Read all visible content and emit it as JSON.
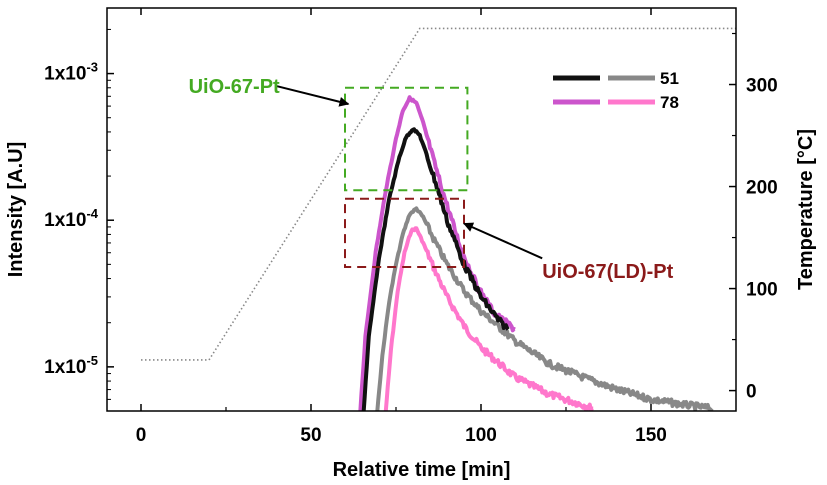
{
  "chart_data": {
    "type": "line",
    "title": "",
    "xlabel": "Relative time [min]",
    "ylabel": "Intensity [A.U]",
    "y2label": "Temperature [°C]",
    "xlim": [
      -10,
      175
    ],
    "ylim": [
      5e-06,
      0.0028
    ],
    "yscale": "log",
    "y2lim": [
      -20,
      375
    ],
    "xticks": [
      0,
      50,
      100,
      150
    ],
    "yticks": [
      {
        "value": 1e-05,
        "base": "1x10",
        "exp": "-5"
      },
      {
        "value": 0.0001,
        "base": "1x10",
        "exp": "-4"
      },
      {
        "value": 0.001,
        "base": "1x10",
        "exp": "-3"
      }
    ],
    "y2ticks": [
      0,
      100,
      200,
      300
    ],
    "temperature_profile": {
      "name": "Temperature",
      "color": "#888888",
      "style": "dotted",
      "x": [
        0,
        17,
        20,
        82,
        175
      ],
      "y": [
        30,
        30,
        30,
        355,
        355
      ]
    },
    "series": [
      {
        "name": "51",
        "sample": "UiO-67-Pt",
        "color": "#111111",
        "x": [
          65.5,
          67,
          70,
          73,
          76,
          78,
          80,
          82,
          84,
          87,
          90,
          95,
          100,
          105,
          108
        ],
        "y": [
          5e-06,
          1.6e-05,
          5.5e-05,
          0.00014,
          0.00027,
          0.00037,
          0.00042,
          0.00038,
          0.00028,
          0.00017,
          0.0001,
          5e-05,
          3e-05,
          2.1e-05,
          1.8e-05
        ]
      },
      {
        "name": "51",
        "sample": "UiO-67(LD)-Pt",
        "color": "#888888",
        "x": [
          69.5,
          71,
          73,
          75,
          77,
          79,
          81,
          83,
          86,
          90,
          95,
          100,
          110,
          120,
          130,
          140,
          150,
          160,
          168
        ],
        "y": [
          5e-06,
          1.2e-05,
          2.8e-05,
          5e-05,
          8e-05,
          0.00011,
          0.00012,
          0.000105,
          7.5e-05,
          5e-05,
          3.3e-05,
          2.4e-05,
          1.5e-05,
          1.05e-05,
          8.5e-06,
          7e-06,
          6e-06,
          5.5e-06,
          5.2e-06
        ]
      },
      {
        "name": "78",
        "sample": "UiO-67-Pt",
        "color": "#cc55cc",
        "x": [
          64.5,
          66,
          69,
          72,
          75,
          77,
          79,
          81,
          83,
          86,
          89,
          94,
          99,
          104,
          110
        ],
        "y": [
          5e-06,
          1.6e-05,
          6e-05,
          0.00016,
          0.00036,
          0.00056,
          0.00068,
          0.00063,
          0.00046,
          0.00026,
          0.00015,
          6.5e-05,
          3.5e-05,
          2.3e-05,
          1.8e-05
        ]
      },
      {
        "name": "78",
        "sample": "UiO-67(LD)-Pt",
        "color": "#ff77cc",
        "x": [
          72,
          73.5,
          75.5,
          77.5,
          79.5,
          81,
          83,
          86,
          90,
          95,
          100,
          110,
          120,
          130,
          133
        ],
        "y": [
          5e-06,
          1.3e-05,
          3.3e-05,
          6e-05,
          8.5e-05,
          8.8e-05,
          7e-05,
          4.8e-05,
          3e-05,
          1.9e-05,
          1.35e-05,
          8.5e-06,
          6.5e-06,
          5.5e-06,
          5.2e-06
        ]
      }
    ],
    "legend": {
      "position": "top-right",
      "rows": [
        {
          "label": "51",
          "colors": [
            "#111111",
            "#888888"
          ]
        },
        {
          "label": "78",
          "colors": [
            "#cc55cc",
            "#ff77cc"
          ]
        }
      ]
    },
    "annotations": [
      {
        "text": "UiO-67-Pt",
        "color": "#44aa22",
        "box": {
          "x0": 60,
          "x1": 96,
          "y0": 0.00016,
          "y1": 0.0008
        },
        "label_at": {
          "x": 14,
          "y": 0.00082
        },
        "arrow_from": {
          "x": 40,
          "y": 0.00082
        },
        "arrow_to": {
          "x": 61,
          "y": 0.00062
        }
      },
      {
        "text": "UiO-67(LD)-Pt",
        "color": "#8b1a1a",
        "box": {
          "x0": 60,
          "x1": 95,
          "y0": 4.8e-05,
          "y1": 0.00014
        },
        "label_at": {
          "x": 118,
          "y": 4.5e-05
        },
        "arrow_from": {
          "x": 118,
          "y": 5.5e-05
        },
        "arrow_to": {
          "x": 95,
          "y": 9.5e-05
        }
      }
    ]
  }
}
